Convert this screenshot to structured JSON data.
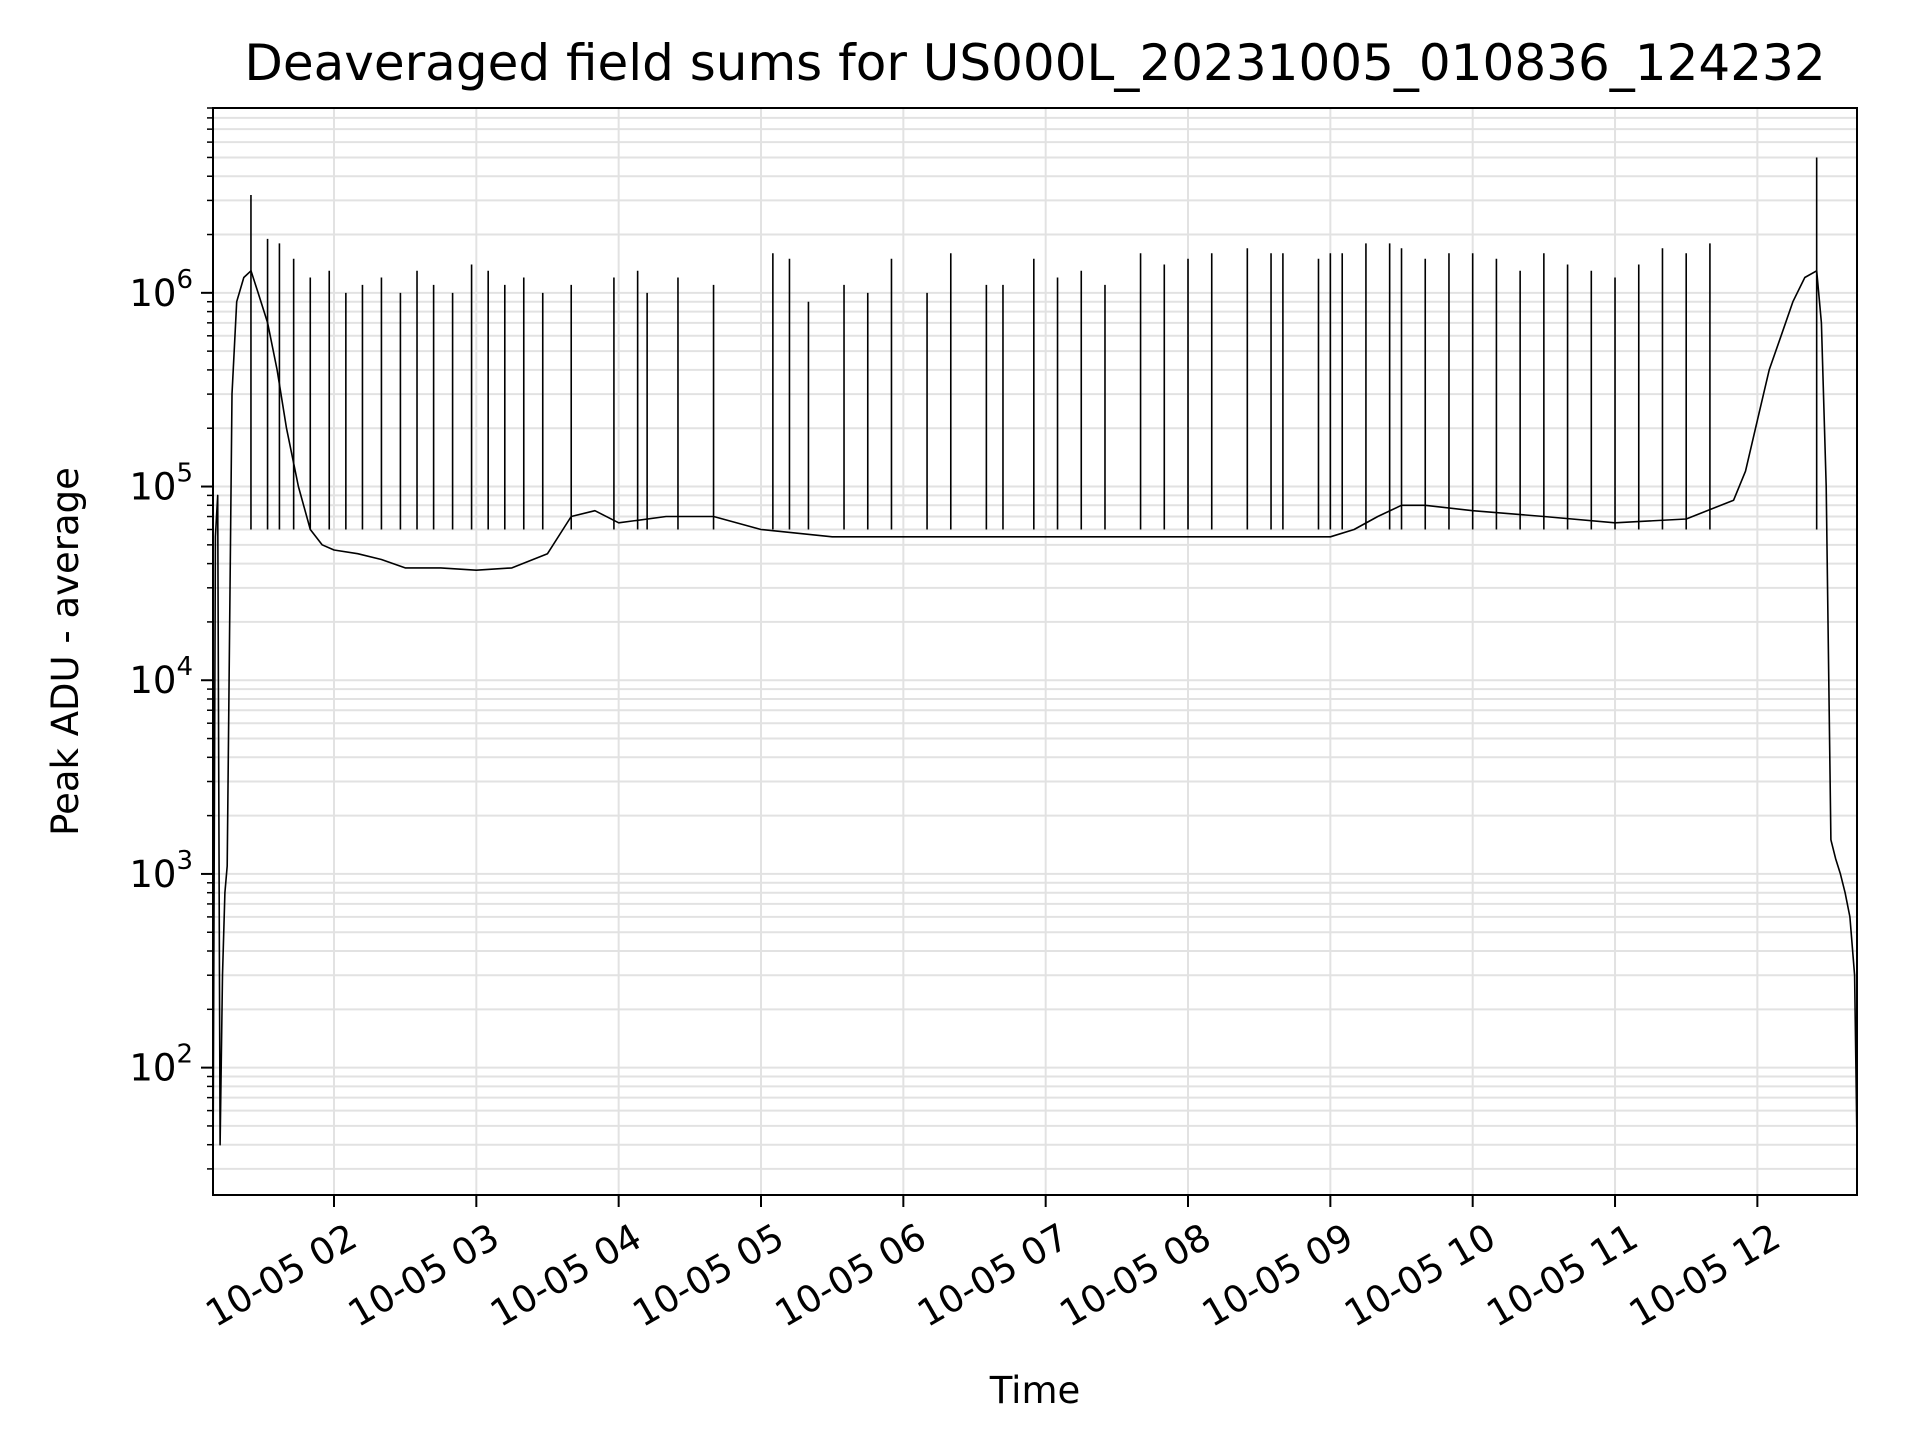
{
  "chart_data": {
    "type": "line",
    "title": "Deaveraged field sums for US000L_20231005_010836_124232",
    "xlabel": "Time",
    "ylabel": "Peak ADU - average",
    "x_scale": "time",
    "y_scale": "log",
    "xlim": [
      "2023-10-05 01:09",
      "2023-10-05 12:42"
    ],
    "ylim": [
      22,
      9000000
    ],
    "grid": true,
    "line_color": "#000000",
    "grid_color": "#e2e2e2",
    "x_ticks": [
      {
        "t": "2023-10-05 02:00",
        "label": "10-05 02"
      },
      {
        "t": "2023-10-05 03:00",
        "label": "10-05 03"
      },
      {
        "t": "2023-10-05 04:00",
        "label": "10-05 04"
      },
      {
        "t": "2023-10-05 05:00",
        "label": "10-05 05"
      },
      {
        "t": "2023-10-05 06:00",
        "label": "10-05 06"
      },
      {
        "t": "2023-10-05 07:00",
        "label": "10-05 07"
      },
      {
        "t": "2023-10-05 08:00",
        "label": "10-05 08"
      },
      {
        "t": "2023-10-05 09:00",
        "label": "10-05 09"
      },
      {
        "t": "2023-10-05 10:00",
        "label": "10-05 10"
      },
      {
        "t": "2023-10-05 11:00",
        "label": "10-05 11"
      },
      {
        "t": "2023-10-05 12:00",
        "label": "10-05 12"
      }
    ],
    "y_ticks": [
      {
        "value": 100,
        "base": "10",
        "exp": "2"
      },
      {
        "value": 1000,
        "base": "10",
        "exp": "3"
      },
      {
        "value": 10000,
        "base": "10",
        "exp": "4"
      },
      {
        "value": 100000,
        "base": "10",
        "exp": "5"
      },
      {
        "value": 1000000,
        "base": "10",
        "exp": "6"
      }
    ],
    "series": [
      {
        "style": "baseline",
        "x": [
          "2023-10-05 01:09",
          "2023-10-05 01:10",
          "2023-10-05 01:11",
          "2023-10-05 01:12",
          "2023-10-05 01:13",
          "2023-10-05 01:14",
          "2023-10-05 01:15",
          "2023-10-05 01:17",
          "2023-10-05 01:19",
          "2023-10-05 01:22",
          "2023-10-05 01:25",
          "2023-10-05 01:28",
          "2023-10-05 01:32",
          "2023-10-05 01:36",
          "2023-10-05 01:40",
          "2023-10-05 01:45",
          "2023-10-05 01:50",
          "2023-10-05 01:55",
          "2023-10-05 02:00",
          "2023-10-05 02:10",
          "2023-10-05 02:20",
          "2023-10-05 02:30",
          "2023-10-05 02:45",
          "2023-10-05 03:00",
          "2023-10-05 03:15",
          "2023-10-05 03:30",
          "2023-10-05 03:40",
          "2023-10-05 03:50",
          "2023-10-05 04:00",
          "2023-10-05 04:20",
          "2023-10-05 04:40",
          "2023-10-05 05:00",
          "2023-10-05 05:30",
          "2023-10-05 06:00",
          "2023-10-05 06:30",
          "2023-10-05 07:00",
          "2023-10-05 07:30",
          "2023-10-05 08:00",
          "2023-10-05 08:30",
          "2023-10-05 09:00",
          "2023-10-05 09:10",
          "2023-10-05 09:20",
          "2023-10-05 09:30",
          "2023-10-05 09:40",
          "2023-10-05 10:00",
          "2023-10-05 10:30",
          "2023-10-05 11:00",
          "2023-10-05 11:30",
          "2023-10-05 11:50",
          "2023-10-05 11:55",
          "2023-10-05 12:00",
          "2023-10-05 12:05",
          "2023-10-05 12:10",
          "2023-10-05 12:15",
          "2023-10-05 12:20",
          "2023-10-05 12:25",
          "2023-10-05 12:27",
          "2023-10-05 12:29",
          "2023-10-05 12:31",
          "2023-10-05 12:33",
          "2023-10-05 12:35",
          "2023-10-05 12:37",
          "2023-10-05 12:39",
          "2023-10-05 12:41",
          "2023-10-05 12:42"
        ],
        "y": [
          25,
          55000,
          90000,
          40,
          300,
          800,
          1100,
          300000,
          900000,
          1200000,
          1300000,
          1000000,
          700000,
          400000,
          200000,
          100000,
          60000,
          50000,
          47000,
          45000,
          42000,
          38000,
          38000,
          37000,
          38000,
          45000,
          70000,
          75000,
          65000,
          70000,
          70000,
          60000,
          55000,
          55000,
          55000,
          55000,
          55000,
          55000,
          55000,
          55000,
          60000,
          70000,
          80000,
          80000,
          75000,
          70000,
          65000,
          68000,
          85000,
          120000,
          220000,
          400000,
          600000,
          900000,
          1200000,
          1300000,
          700000,
          100000,
          1500,
          1200,
          1000,
          800,
          600,
          300,
          40
        ]
      },
      {
        "style": "spikes",
        "x": [
          "2023-10-05 01:25",
          "2023-10-05 01:32",
          "2023-10-05 01:37",
          "2023-10-05 01:43",
          "2023-10-05 01:50",
          "2023-10-05 01:58",
          "2023-10-05 02:05",
          "2023-10-05 02:12",
          "2023-10-05 02:20",
          "2023-10-05 02:28",
          "2023-10-05 02:35",
          "2023-10-05 02:42",
          "2023-10-05 02:50",
          "2023-10-05 02:58",
          "2023-10-05 03:05",
          "2023-10-05 03:12",
          "2023-10-05 03:20",
          "2023-10-05 03:28",
          "2023-10-05 03:40",
          "2023-10-05 03:58",
          "2023-10-05 04:08",
          "2023-10-05 04:12",
          "2023-10-05 04:25",
          "2023-10-05 04:40",
          "2023-10-05 05:05",
          "2023-10-05 05:12",
          "2023-10-05 05:20",
          "2023-10-05 05:35",
          "2023-10-05 05:45",
          "2023-10-05 05:55",
          "2023-10-05 06:10",
          "2023-10-05 06:20",
          "2023-10-05 06:35",
          "2023-10-05 06:42",
          "2023-10-05 06:55",
          "2023-10-05 07:05",
          "2023-10-05 07:15",
          "2023-10-05 07:25",
          "2023-10-05 07:40",
          "2023-10-05 07:50",
          "2023-10-05 08:00",
          "2023-10-05 08:10",
          "2023-10-05 08:25",
          "2023-10-05 08:35",
          "2023-10-05 08:40",
          "2023-10-05 08:55",
          "2023-10-05 09:00",
          "2023-10-05 09:05",
          "2023-10-05 09:15",
          "2023-10-05 09:25",
          "2023-10-05 09:30",
          "2023-10-05 09:40",
          "2023-10-05 09:50",
          "2023-10-05 10:00",
          "2023-10-05 10:10",
          "2023-10-05 10:20",
          "2023-10-05 10:30",
          "2023-10-05 10:40",
          "2023-10-05 10:50",
          "2023-10-05 11:00",
          "2023-10-05 11:10",
          "2023-10-05 11:20",
          "2023-10-05 11:30",
          "2023-10-05 11:40",
          "2023-10-05 12:25"
        ],
        "y": [
          3200000,
          1900000,
          1800000,
          1500000,
          1200000,
          1300000,
          1000000,
          1100000,
          1200000,
          1000000,
          1300000,
          1100000,
          1000000,
          1400000,
          1300000,
          1100000,
          1200000,
          1000000,
          1100000,
          1200000,
          1300000,
          1000000,
          1200000,
          1100000,
          1600000,
          1500000,
          900000,
          1100000,
          1000000,
          1500000,
          1000000,
          1600000,
          1100000,
          1100000,
          1500000,
          1200000,
          1300000,
          1100000,
          1600000,
          1400000,
          1500000,
          1600000,
          1700000,
          1600000,
          1600000,
          1500000,
          1600000,
          1600000,
          1800000,
          1800000,
          1700000,
          1500000,
          1600000,
          1600000,
          1500000,
          1300000,
          1600000,
          1400000,
          1300000,
          1200000,
          1400000,
          1700000,
          1600000,
          1800000,
          5000000
        ]
      }
    ]
  }
}
